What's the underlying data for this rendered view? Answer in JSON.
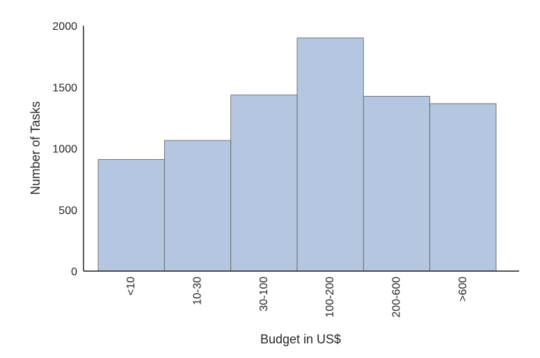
{
  "chart_data": {
    "type": "bar",
    "title": "",
    "categories": [
      "<10",
      "10-30",
      "30-100",
      "100-200",
      "200-600",
      ">600"
    ],
    "values": [
      910,
      1065,
      1435,
      1900,
      1425,
      1365
    ],
    "xlabel": "Budget in US$",
    "ylabel": "Number of Tasks",
    "ylim": [
      0,
      2000
    ],
    "yticks": [
      "0",
      "500",
      "1000",
      "1500",
      "2000"
    ],
    "grid": false,
    "bar_color": "#b5c6e0",
    "bar_edge_color": "#5a5a5a"
  }
}
